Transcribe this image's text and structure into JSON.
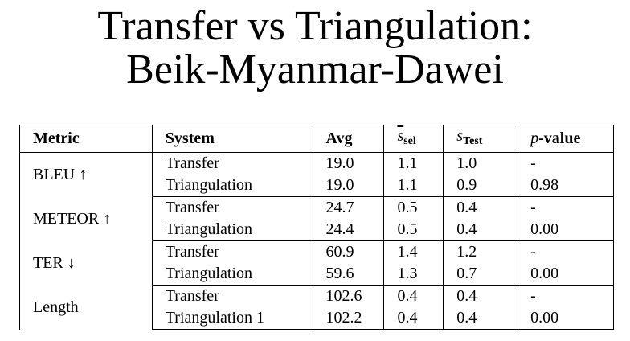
{
  "title": {
    "line1": "Transfer vs Triangulation:",
    "line2": "Beik-Myanmar-Dawei"
  },
  "table": {
    "headers": {
      "metric": "Metric",
      "system": "System",
      "avg": "Avg",
      "s_sel_main": "s",
      "s_sel_sub": "sel",
      "s_test_main": "s",
      "s_test_sub": "Test",
      "pvalue_p": "p",
      "pvalue_rest": "-value"
    },
    "groups": [
      {
        "metric": "BLEU ↑",
        "rows": [
          {
            "system": "Transfer",
            "avg": "19.0",
            "s_sel": "1.1",
            "s_test": "1.0",
            "p_value": "-"
          },
          {
            "system": "Triangulation",
            "avg": "19.0",
            "s_sel": "1.1",
            "s_test": "0.9",
            "p_value": "0.98"
          }
        ]
      },
      {
        "metric": "METEOR ↑",
        "rows": [
          {
            "system": "Transfer",
            "avg": "24.7",
            "s_sel": "0.5",
            "s_test": "0.4",
            "p_value": "-"
          },
          {
            "system": "Triangulation",
            "avg": "24.4",
            "s_sel": "0.5",
            "s_test": "0.4",
            "p_value": "0.00"
          }
        ]
      },
      {
        "metric": "TER ↓",
        "rows": [
          {
            "system": "Transfer",
            "avg": "60.9",
            "s_sel": "1.4",
            "s_test": "1.2",
            "p_value": "-"
          },
          {
            "system": "Triangulation",
            "avg": "59.6",
            "s_sel": "1.3",
            "s_test": "0.7",
            "p_value": "0.00"
          }
        ]
      },
      {
        "metric": "Length",
        "rows": [
          {
            "system": "Transfer",
            "avg": "102.6",
            "s_sel": "0.4",
            "s_test": "0.4",
            "p_value": "-"
          },
          {
            "system": "Triangulation 1",
            "avg": "102.2",
            "s_sel": "0.4",
            "s_test": "0.4",
            "p_value": "0.00"
          }
        ]
      }
    ]
  }
}
